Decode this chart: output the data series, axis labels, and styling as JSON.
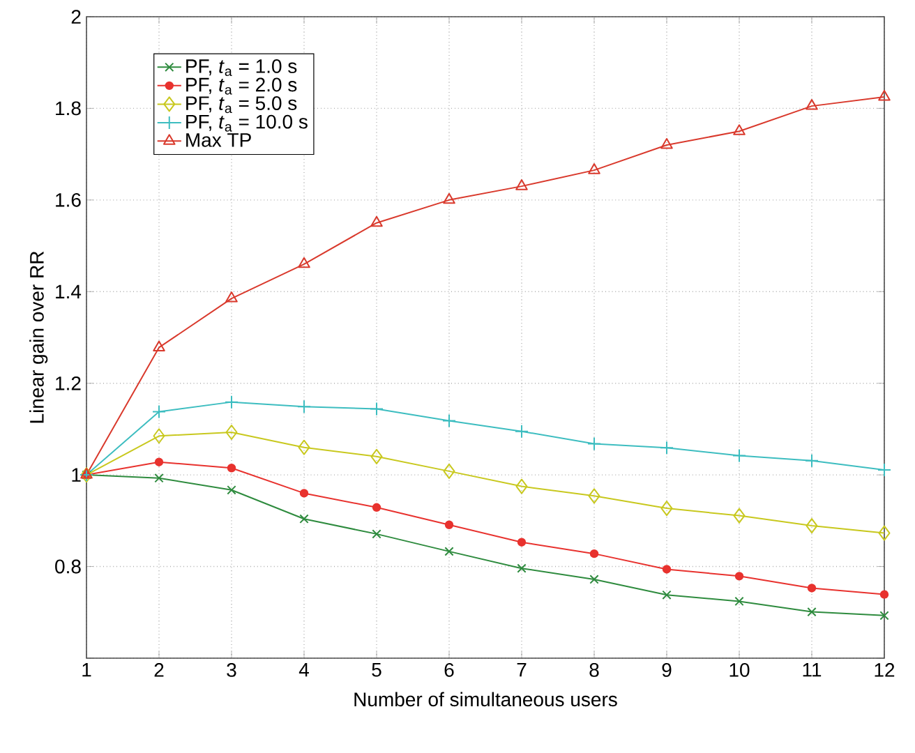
{
  "chart_data": {
    "type": "line",
    "xlabel": "Number of simultaneous users",
    "ylabel": "Linear gain over RR",
    "x": [
      1,
      2,
      3,
      4,
      5,
      6,
      7,
      8,
      9,
      10,
      11,
      12
    ],
    "xlim": [
      1,
      12
    ],
    "xticks": [
      1,
      2,
      3,
      4,
      5,
      6,
      7,
      8,
      9,
      10,
      11,
      12
    ],
    "ylim": [
      0.6,
      2
    ],
    "yticks": [
      {
        "value": 0.6,
        "label": null
      },
      0.8,
      1,
      1.2,
      1.4,
      1.6,
      1.8,
      2
    ],
    "grid": true,
    "legend": "top left",
    "line_style": "solid",
    "series": [
      {
        "name": "PF, *t*$_{a}$ = 1.0 s",
        "color": "#2e8b3e",
        "marker": "cross",
        "values": [
          1,
          0.993,
          0.967,
          0.904,
          0.871,
          0.833,
          0.796,
          0.772,
          0.738,
          0.724,
          0.701,
          0.693
        ]
      },
      {
        "name": "PF, *t*$_{a}$ = 2.0 s",
        "color": "#e8322e",
        "marker": "circle",
        "values": [
          1,
          1.028,
          1.015,
          0.96,
          0.929,
          0.891,
          0.853,
          0.828,
          0.794,
          0.779,
          0.753,
          0.739
        ]
      },
      {
        "name": "PF, *t*$_{a}$ = 5.0 s",
        "color": "#c8c81e",
        "marker": "diamond",
        "values": [
          1,
          1.085,
          1.093,
          1.06,
          1.04,
          1.008,
          0.975,
          0.954,
          0.927,
          0.911,
          0.889,
          0.873
        ]
      },
      {
        "name": "PF, *t*$_{a}$ = 10.0 s",
        "color": "#3dbdc0",
        "marker": "plus",
        "values": [
          1,
          1.138,
          1.159,
          1.149,
          1.144,
          1.118,
          1.095,
          1.068,
          1.059,
          1.042,
          1.031,
          1.011
        ]
      },
      {
        "name": "Max TP",
        "color": "#d9392c",
        "marker": "triangle",
        "values": [
          1,
          1.278,
          1.385,
          1.46,
          1.55,
          1.6,
          1.63,
          1.665,
          1.72,
          1.75,
          1.805,
          1.825
        ]
      }
    ]
  }
}
